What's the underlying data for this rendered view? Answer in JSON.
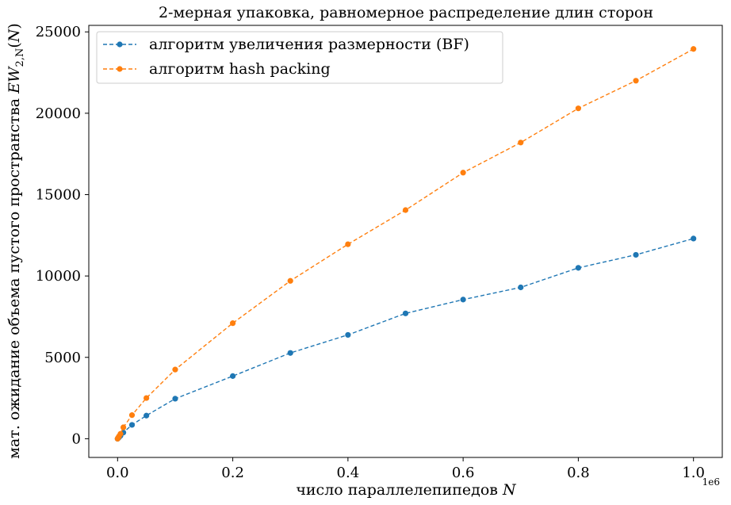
{
  "chart_data": {
    "type": "line",
    "title": "2-мерная упаковка, равномерное распределение длин сторон",
    "xlabel": "число параллелепипедов N",
    "ylabel": "мат. ожидание объема пустого пространства EW2,N(N)",
    "x_offset_text": "1e6",
    "xlim": [
      -0.05,
      1.05
    ],
    "ylim": [
      -1150,
      25400
    ],
    "x_ticks": [
      0.0,
      0.2,
      0.4,
      0.6,
      0.8,
      1.0
    ],
    "x_tick_labels": [
      "0.0",
      "0.2",
      "0.4",
      "0.6",
      "0.8",
      "1.0"
    ],
    "y_ticks": [
      0,
      5000,
      10000,
      15000,
      20000,
      25000
    ],
    "y_tick_labels": [
      "0",
      "5000",
      "10000",
      "15000",
      "20000",
      "25000"
    ],
    "grid": false,
    "legend_position": "upper-left",
    "series": [
      {
        "name": "алгоритм увеличения размерности (BF)",
        "color": "#1f77b4",
        "x": [
          0,
          0.001,
          0.0025,
          0.005,
          0.01,
          0.025,
          0.05,
          0.1,
          0.2,
          0.3,
          0.4,
          0.5,
          0.6,
          0.7,
          0.8,
          0.9,
          1.0
        ],
        "y": [
          0,
          40,
          90,
          180,
          380,
          850,
          1420,
          2460,
          3850,
          5270,
          6380,
          7700,
          8550,
          9300,
          10500,
          11300,
          12300
        ]
      },
      {
        "name": "алгоритм hash packing",
        "color": "#ff7f0e",
        "x": [
          0,
          0.001,
          0.0025,
          0.005,
          0.01,
          0.025,
          0.05,
          0.1,
          0.2,
          0.3,
          0.4,
          0.5,
          0.6,
          0.7,
          0.8,
          0.9,
          1.0
        ],
        "y": [
          0,
          60,
          150,
          300,
          700,
          1450,
          2500,
          4250,
          7100,
          9700,
          11950,
          14050,
          16350,
          18200,
          20300,
          22000,
          23950
        ]
      }
    ]
  }
}
